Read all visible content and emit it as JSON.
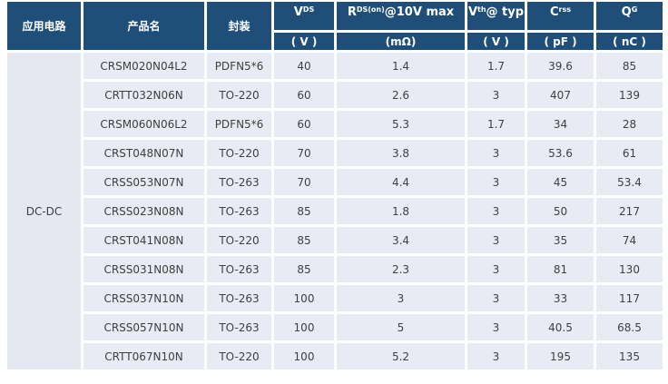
{
  "table": {
    "colors": {
      "header_bg": "#1f4e79",
      "header_text": "#ffffff",
      "row_bg": "#e9ebf4",
      "app_column_bg": "#e6e8f1",
      "text": "#3f3f3f",
      "separator": "#ffffff"
    },
    "columns": [
      {
        "label": "应用电路",
        "unit": ""
      },
      {
        "label": "产品名",
        "unit": ""
      },
      {
        "label": "封装",
        "unit": ""
      },
      {
        "base": "V",
        "sup": "DS",
        "rest": "",
        "unit": "( V )"
      },
      {
        "base": "R",
        "sup": "DS(on)",
        "rest": " @10V max",
        "unit": "(mΩ)"
      },
      {
        "base": "V",
        "sup": "th",
        "rest": "@ typ",
        "unit": "( V )"
      },
      {
        "base": "C",
        "sup": "rss",
        "rest": "",
        "unit": "( pF )"
      },
      {
        "base": "Q",
        "sup": "G",
        "rest": "",
        "unit": "( nC )"
      }
    ],
    "application_label": "DC-DC",
    "rows": [
      {
        "product": "CRSM020N04L2",
        "package": "PDFN5*6",
        "vds": "40",
        "rds": "1.4",
        "vth": "1.7",
        "crss": "39.6",
        "qg": "85"
      },
      {
        "product": "CRTT032N06N",
        "package": "TO-220",
        "vds": "60",
        "rds": "2.6",
        "vth": "3",
        "crss": "407",
        "qg": "139"
      },
      {
        "product": "CRSM060N06L2",
        "package": "PDFN5*6",
        "vds": "60",
        "rds": "5.3",
        "vth": "1.7",
        "crss": "34",
        "qg": "28"
      },
      {
        "product": "CRST048N07N",
        "package": "TO-220",
        "vds": "70",
        "rds": "3.8",
        "vth": "3",
        "crss": "53.6",
        "qg": "61"
      },
      {
        "product": "CRSS053N07N",
        "package": "TO-263",
        "vds": "70",
        "rds": "4.4",
        "vth": "3",
        "crss": "45",
        "qg": "53.4"
      },
      {
        "product": "CRSS023N08N",
        "package": "TO-263",
        "vds": "85",
        "rds": "1.8",
        "vth": "3",
        "crss": "50",
        "qg": "217"
      },
      {
        "product": "CRST041N08N",
        "package": "TO-220",
        "vds": "85",
        "rds": "3.4",
        "vth": "3",
        "crss": "35",
        "qg": "74"
      },
      {
        "product": "CRSS031N08N",
        "package": "TO-263",
        "vds": "85",
        "rds": "2.3",
        "vth": "3",
        "crss": "81",
        "qg": "130"
      },
      {
        "product": "CRSS037N10N",
        "package": "TO-263",
        "vds": "100",
        "rds": "3",
        "vth": "3",
        "crss": "33",
        "qg": "117"
      },
      {
        "product": "CRSS057N10N",
        "package": "TO-263",
        "vds": "100",
        "rds": "5",
        "vth": "3",
        "crss": "40.5",
        "qg": "68.5"
      },
      {
        "product": "CRTT067N10N",
        "package": "TO-220",
        "vds": "100",
        "rds": "5.2",
        "vth": "3",
        "crss": "195",
        "qg": "135"
      }
    ]
  }
}
